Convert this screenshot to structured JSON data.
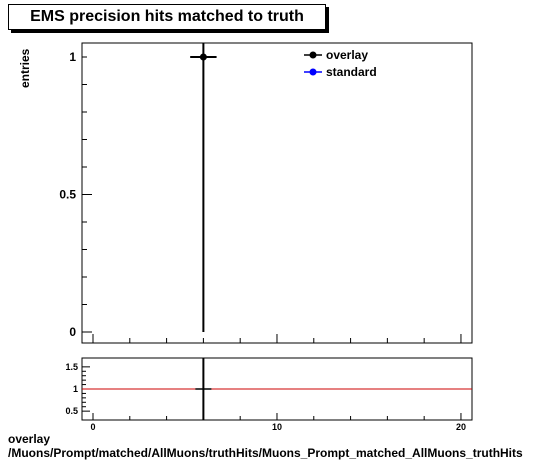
{
  "title": "EMS precision hits matched to truth",
  "ylabel": "entries",
  "footer": {
    "line1": "overlay",
    "line2": "/Muons/Prompt/matched/AllMuons/truthHits/Muons_Prompt_matched_AllMuons_truthHits"
  },
  "colors": {
    "overlay": "#000000",
    "standard": "#0000ff",
    "ratio_line": "#cc0000"
  },
  "chart_data": [
    {
      "type": "scatter",
      "title": "EMS precision hits matched to truth",
      "ylabel": "entries",
      "xlim": [
        0,
        20.6
      ],
      "ylim": [
        0,
        1.05
      ],
      "y_ticks": [
        0,
        0.5,
        1
      ],
      "y_tick_labels": [
        "0",
        "0.5",
        "1"
      ],
      "legend_placement": "top-right",
      "series": [
        {
          "name": "overlay",
          "x": [
            6
          ],
          "y": [
            1
          ],
          "xerr": [
            0.5
          ]
        },
        {
          "name": "standard",
          "x": [],
          "y": []
        }
      ]
    },
    {
      "type": "line",
      "xlim": [
        0,
        20.6
      ],
      "ylim": [
        0.3,
        1.7
      ],
      "x_ticks": [
        0,
        10,
        20
      ],
      "x_tick_labels": [
        "0",
        "10",
        "20"
      ],
      "y_ticks": [
        0.5,
        1,
        1.5
      ],
      "y_tick_labels": [
        "0.5",
        "1",
        "1.5"
      ],
      "reference_line": 1,
      "points": [
        {
          "x": 6,
          "y": 1
        }
      ]
    }
  ]
}
